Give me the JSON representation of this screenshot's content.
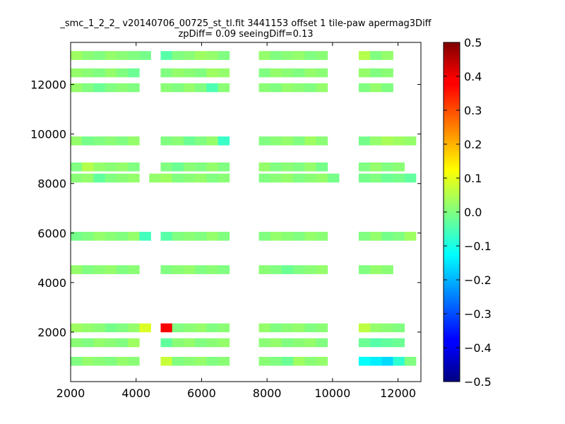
{
  "chart_data": {
    "type": "heatmap",
    "title": "_smc_1_2_2_ v20140706_00725_st_tl.fit 3441153 offset 1 tile-paw apermag3Diff",
    "subtitle": "zpDiff= 0.09 seeingDiff=0.13",
    "xlabel": "",
    "ylabel": "",
    "xlim": [
      2000,
      12700
    ],
    "ylim": [
      0,
      13700
    ],
    "xticks": [
      2000,
      4000,
      6000,
      8000,
      10000,
      12000
    ],
    "xtick_labels": [
      "2000",
      "4000",
      "6000",
      "8000",
      "10000",
      "12000"
    ],
    "yticks": [
      2000,
      4000,
      6000,
      8000,
      10000,
      12000
    ],
    "ytick_labels": [
      "2000",
      "4000",
      "6000",
      "8000",
      "10000",
      "12000"
    ],
    "cell_size": 350,
    "colorbar": {
      "colormap": "jet",
      "vmin": -0.5,
      "vmax": 0.5,
      "ticks": [
        0.5,
        0.4,
        0.3,
        0.2,
        0.1,
        0.0,
        -0.1,
        -0.2,
        -0.3,
        -0.4,
        -0.5
      ],
      "tick_labels": [
        "0.5",
        "0.4",
        "0.3",
        "0.2",
        "0.1",
        "0.0",
        "−0.1",
        "−0.2",
        "−0.3",
        "−0.4",
        "−0.5"
      ]
    },
    "grid": false,
    "cells": [
      [
        2000,
        13000,
        0.03
      ],
      [
        2350,
        13000,
        0.01
      ],
      [
        2700,
        13000,
        0.0
      ],
      [
        3050,
        13000,
        0.02
      ],
      [
        3400,
        13000,
        0.01
      ],
      [
        3750,
        13000,
        0.0
      ],
      [
        4100,
        13000,
        -0.01
      ],
      [
        4750,
        13000,
        -0.04
      ],
      [
        5100,
        13000,
        0.0
      ],
      [
        5450,
        13000,
        0.01
      ],
      [
        5800,
        13000,
        0.03
      ],
      [
        6150,
        13000,
        0.02
      ],
      [
        6500,
        13000,
        0.0
      ],
      [
        7750,
        13000,
        0.02
      ],
      [
        8100,
        13000,
        0.0
      ],
      [
        8450,
        13000,
        0.01
      ],
      [
        8800,
        13000,
        0.02
      ],
      [
        9150,
        13000,
        0.0
      ],
      [
        9500,
        13000,
        0.01
      ],
      [
        10800,
        13000,
        0.05
      ],
      [
        11150,
        13000,
        0.0
      ],
      [
        11500,
        13000,
        0.02
      ],
      [
        2000,
        12300,
        0.02
      ],
      [
        2350,
        12300,
        0.01
      ],
      [
        2700,
        12300,
        0.0
      ],
      [
        3050,
        12300,
        0.02
      ],
      [
        3400,
        12300,
        0.0
      ],
      [
        3750,
        12300,
        -0.02
      ],
      [
        4750,
        12300,
        0.0
      ],
      [
        5100,
        12300,
        0.02
      ],
      [
        5450,
        12300,
        0.01
      ],
      [
        5800,
        12300,
        0.0
      ],
      [
        6150,
        12300,
        0.03
      ],
      [
        6500,
        12300,
        0.02
      ],
      [
        7750,
        12300,
        0.0
      ],
      [
        8100,
        12300,
        0.02
      ],
      [
        8450,
        12300,
        0.01
      ],
      [
        8800,
        12300,
        0.0
      ],
      [
        9150,
        12300,
        0.02
      ],
      [
        9500,
        12300,
        0.01
      ],
      [
        10800,
        12300,
        0.02
      ],
      [
        11150,
        12300,
        0.0
      ],
      [
        11500,
        12300,
        0.01
      ],
      [
        2000,
        11700,
        0.02
      ],
      [
        2350,
        11700,
        0.0
      ],
      [
        2700,
        11700,
        -0.02
      ],
      [
        3050,
        11700,
        0.0
      ],
      [
        3400,
        11700,
        0.01
      ],
      [
        3750,
        11700,
        0.0
      ],
      [
        4750,
        11700,
        0.01
      ],
      [
        5100,
        11700,
        0.0
      ],
      [
        5450,
        11700,
        0.02
      ],
      [
        5800,
        11700,
        0.0
      ],
      [
        6150,
        11700,
        -0.05
      ],
      [
        6500,
        11700,
        0.01
      ],
      [
        7750,
        11700,
        0.01
      ],
      [
        8100,
        11700,
        0.0
      ],
      [
        8450,
        11700,
        0.02
      ],
      [
        8800,
        11700,
        0.01
      ],
      [
        9150,
        11700,
        0.0
      ],
      [
        9500,
        11700,
        0.02
      ],
      [
        10800,
        11700,
        0.0
      ],
      [
        11150,
        11700,
        0.02
      ],
      [
        11500,
        11700,
        0.0
      ],
      [
        2000,
        9550,
        0.02
      ],
      [
        2350,
        9550,
        -0.01
      ],
      [
        2700,
        9550,
        0.0
      ],
      [
        3050,
        9550,
        0.01
      ],
      [
        3400,
        9550,
        0.0
      ],
      [
        3750,
        9550,
        0.02
      ],
      [
        4750,
        9550,
        0.0
      ],
      [
        5100,
        9550,
        0.01
      ],
      [
        5450,
        9550,
        -0.02
      ],
      [
        5800,
        9550,
        0.0
      ],
      [
        6150,
        9550,
        0.02
      ],
      [
        6500,
        9550,
        -0.07
      ],
      [
        7750,
        9550,
        0.0
      ],
      [
        8100,
        9550,
        0.01
      ],
      [
        8450,
        9550,
        0.02
      ],
      [
        8800,
        9550,
        0.0
      ],
      [
        9150,
        9550,
        0.03
      ],
      [
        9500,
        9550,
        0.01
      ],
      [
        10800,
        9550,
        -0.01
      ],
      [
        11150,
        9550,
        0.02
      ],
      [
        11500,
        9550,
        0.04
      ],
      [
        11850,
        9550,
        0.03
      ],
      [
        12200,
        9550,
        0.02
      ],
      [
        2000,
        8500,
        0.0
      ],
      [
        2350,
        8500,
        0.05
      ],
      [
        2700,
        8500,
        0.02
      ],
      [
        3050,
        8500,
        0.01
      ],
      [
        3400,
        8500,
        0.02
      ],
      [
        3750,
        8500,
        0.0
      ],
      [
        4750,
        8500,
        0.0
      ],
      [
        5100,
        8500,
        -0.02
      ],
      [
        5450,
        8500,
        0.01
      ],
      [
        5800,
        8500,
        0.0
      ],
      [
        6150,
        8500,
        0.02
      ],
      [
        6500,
        8500,
        0.0
      ],
      [
        7750,
        8500,
        0.02
      ],
      [
        8100,
        8500,
        0.0
      ],
      [
        8450,
        8500,
        0.01
      ],
      [
        8800,
        8500,
        0.0
      ],
      [
        9150,
        8500,
        0.02
      ],
      [
        9500,
        8500,
        -0.01
      ],
      [
        10800,
        8500,
        0.0
      ],
      [
        11150,
        8500,
        0.02
      ],
      [
        11500,
        8500,
        0.0
      ],
      [
        11850,
        8500,
        0.01
      ],
      [
        2000,
        8050,
        0.01
      ],
      [
        2350,
        8050,
        0.02
      ],
      [
        2700,
        8050,
        -0.03
      ],
      [
        3050,
        8050,
        0.0
      ],
      [
        3400,
        8050,
        0.01
      ],
      [
        3750,
        8050,
        0.02
      ],
      [
        4400,
        8050,
        0.02
      ],
      [
        4750,
        8050,
        0.03
      ],
      [
        5100,
        8050,
        0.0
      ],
      [
        5450,
        8050,
        0.01
      ],
      [
        5800,
        8050,
        0.02
      ],
      [
        6150,
        8050,
        0.0
      ],
      [
        6500,
        8050,
        0.01
      ],
      [
        7750,
        8050,
        0.0
      ],
      [
        8100,
        8050,
        0.01
      ],
      [
        8450,
        8050,
        0.02
      ],
      [
        8800,
        8050,
        0.0
      ],
      [
        9150,
        8050,
        0.01
      ],
      [
        9500,
        8050,
        0.02
      ],
      [
        9850,
        8050,
        -0.01
      ],
      [
        10800,
        8050,
        -0.01
      ],
      [
        11150,
        8050,
        0.0
      ],
      [
        11500,
        8050,
        -0.02
      ],
      [
        11850,
        8050,
        -0.01
      ],
      [
        12200,
        8050,
        -0.03
      ],
      [
        2000,
        5700,
        -0.01
      ],
      [
        2350,
        5700,
        0.0
      ],
      [
        2700,
        5700,
        0.02
      ],
      [
        3050,
        5700,
        0.01
      ],
      [
        3400,
        5700,
        0.0
      ],
      [
        3750,
        5700,
        0.02
      ],
      [
        4100,
        5700,
        -0.06
      ],
      [
        4750,
        5700,
        -0.04
      ],
      [
        5100,
        5700,
        0.0
      ],
      [
        5450,
        5700,
        0.01
      ],
      [
        5800,
        5700,
        0.0
      ],
      [
        6150,
        5700,
        0.02
      ],
      [
        6500,
        5700,
        0.0
      ],
      [
        7750,
        5700,
        0.0
      ],
      [
        8100,
        5700,
        0.02
      ],
      [
        8450,
        5700,
        0.01
      ],
      [
        8800,
        5700,
        0.0
      ],
      [
        9150,
        5700,
        0.02
      ],
      [
        9500,
        5700,
        0.01
      ],
      [
        10800,
        5700,
        0.0
      ],
      [
        11150,
        5700,
        0.02
      ],
      [
        11500,
        5700,
        -0.01
      ],
      [
        11850,
        5700,
        0.0
      ],
      [
        12200,
        5700,
        0.03
      ],
      [
        2000,
        4350,
        0.02
      ],
      [
        2350,
        4350,
        0.0
      ],
      [
        2700,
        4350,
        0.01
      ],
      [
        3050,
        4350,
        0.02
      ],
      [
        3400,
        4350,
        0.0
      ],
      [
        3750,
        4350,
        0.01
      ],
      [
        4750,
        4350,
        0.0
      ],
      [
        5100,
        4350,
        0.01
      ],
      [
        5450,
        4350,
        0.02
      ],
      [
        5800,
        4350,
        0.0
      ],
      [
        6150,
        4350,
        0.01
      ],
      [
        6500,
        4350,
        0.0
      ],
      [
        7750,
        4350,
        0.01
      ],
      [
        8100,
        4350,
        0.0
      ],
      [
        8450,
        4350,
        -0.02
      ],
      [
        8800,
        4350,
        0.0
      ],
      [
        9150,
        4350,
        0.01
      ],
      [
        9500,
        4350,
        0.02
      ],
      [
        10800,
        4350,
        0.0
      ],
      [
        11150,
        4350,
        0.02
      ],
      [
        11500,
        4350,
        0.01
      ],
      [
        2000,
        2000,
        0.03
      ],
      [
        2350,
        2000,
        0.02
      ],
      [
        2700,
        2000,
        0.01
      ],
      [
        3050,
        2000,
        -0.01
      ],
      [
        3400,
        2000,
        0.0
      ],
      [
        3750,
        2000,
        0.02
      ],
      [
        4100,
        2000,
        0.09
      ],
      [
        4750,
        2000,
        0.38
      ],
      [
        5100,
        2000,
        0.0
      ],
      [
        5450,
        2000,
        0.01
      ],
      [
        5800,
        2000,
        0.02
      ],
      [
        6150,
        2000,
        0.0
      ],
      [
        6500,
        2000,
        0.01
      ],
      [
        7750,
        2000,
        0.02
      ],
      [
        8100,
        2000,
        0.0
      ],
      [
        8450,
        2000,
        0.01
      ],
      [
        8800,
        2000,
        0.02
      ],
      [
        9150,
        2000,
        0.0
      ],
      [
        9500,
        2000,
        0.01
      ],
      [
        10800,
        2000,
        0.06
      ],
      [
        11150,
        2000,
        0.02
      ],
      [
        11500,
        2000,
        0.01
      ],
      [
        11850,
        2000,
        0.0
      ],
      [
        2000,
        1400,
        0.01
      ],
      [
        2350,
        1400,
        0.0
      ],
      [
        2700,
        1400,
        0.02
      ],
      [
        3050,
        1400,
        0.01
      ],
      [
        3400,
        1400,
        0.0
      ],
      [
        3750,
        1400,
        0.03
      ],
      [
        4750,
        1400,
        -0.03
      ],
      [
        5100,
        1400,
        0.01
      ],
      [
        5450,
        1400,
        0.02
      ],
      [
        5800,
        1400,
        0.0
      ],
      [
        6150,
        1400,
        0.01
      ],
      [
        6500,
        1400,
        0.02
      ],
      [
        7750,
        1400,
        0.01
      ],
      [
        8100,
        1400,
        0.02
      ],
      [
        8450,
        1400,
        0.0
      ],
      [
        8800,
        1400,
        0.01
      ],
      [
        9150,
        1400,
        0.02
      ],
      [
        9500,
        1400,
        0.0
      ],
      [
        10800,
        1400,
        -0.02
      ],
      [
        11150,
        1400,
        -0.04
      ],
      [
        11500,
        1400,
        -0.03
      ],
      [
        11850,
        1400,
        -0.02
      ],
      [
        2000,
        650,
        0.0
      ],
      [
        2350,
        650,
        0.02
      ],
      [
        2700,
        650,
        0.01
      ],
      [
        3050,
        650,
        0.0
      ],
      [
        3400,
        650,
        0.02
      ],
      [
        3750,
        650,
        0.01
      ],
      [
        4750,
        650,
        0.07
      ],
      [
        5100,
        650,
        0.0
      ],
      [
        5450,
        650,
        0.01
      ],
      [
        5800,
        650,
        0.02
      ],
      [
        6150,
        650,
        0.0
      ],
      [
        6500,
        650,
        0.01
      ],
      [
        7750,
        650,
        0.01
      ],
      [
        8100,
        650,
        0.0
      ],
      [
        8450,
        650,
        -0.02
      ],
      [
        8800,
        650,
        0.03
      ],
      [
        9150,
        650,
        0.01
      ],
      [
        9500,
        650,
        0.02
      ],
      [
        10800,
        650,
        -0.12
      ],
      [
        11150,
        650,
        -0.14
      ],
      [
        11500,
        650,
        -0.16
      ],
      [
        11850,
        650,
        -0.08
      ],
      [
        12200,
        650,
        0.0
      ]
    ]
  }
}
